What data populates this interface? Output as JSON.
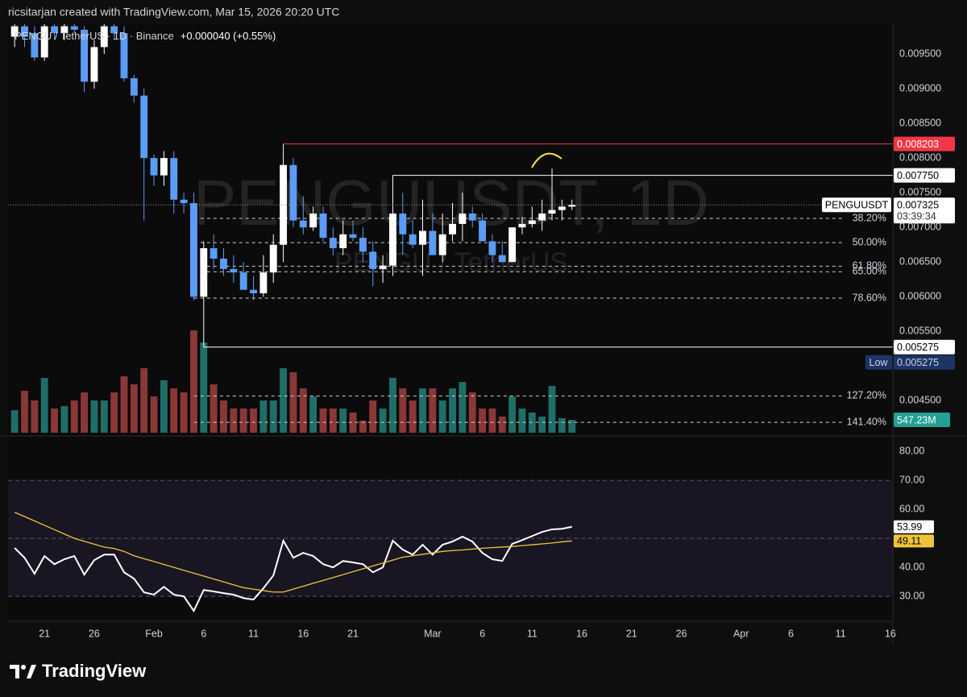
{
  "header": "ricsitarjan created with TradingView.com, Mar 15, 2026 20:20 UTC",
  "footer": "TradingView",
  "chart_data": [
    {
      "type": "candlestick",
      "legend": "PENGU / TetherUS · 1D · Binance",
      "change": "+0.000040 (+0.55%)",
      "watermark": "PENGUUSDT, 1D",
      "watermark_sub": "PENGU / TetherUS",
      "symbol": "PENGUUSDT",
      "countdown": "03:39:34",
      "up_color": "#ffffff",
      "down_color": "#5b9cf6",
      "volume_up_color": "#1f6e68",
      "volume_down_color": "#8a3737",
      "volume_tag_color": "#22a095",
      "x": [
        18,
        19,
        20,
        21,
        22,
        23,
        24,
        25,
        26,
        27,
        28,
        29,
        30,
        31,
        32,
        33,
        34,
        35,
        36,
        37,
        38,
        39,
        40,
        41,
        42,
        43,
        44,
        45,
        46,
        47,
        48,
        49,
        50,
        51,
        52,
        53,
        54,
        55,
        56,
        57,
        58,
        59,
        60,
        61,
        62,
        63,
        64,
        65,
        66,
        67,
        68,
        69,
        70,
        71,
        72,
        73,
        74
      ],
      "open": [
        0.00975,
        0.0099,
        0.0098,
        0.00945,
        0.0099,
        0.0098,
        0.0099,
        0.00985,
        0.0091,
        0.0096,
        0.0099,
        0.0098,
        0.00915,
        0.0089,
        0.008,
        0.00775,
        0.008,
        0.0074,
        0.00735,
        0.006,
        0.0067,
        0.00655,
        0.0064,
        0.00635,
        0.0061,
        0.00605,
        0.00635,
        0.00675,
        0.0079,
        0.0071,
        0.007,
        0.0072,
        0.00685,
        0.0067,
        0.0069,
        0.00685,
        0.00665,
        0.0064,
        0.00645,
        0.0072,
        0.0069,
        0.00675,
        0.00695,
        0.0066,
        0.0069,
        0.00705,
        0.0072,
        0.0071,
        0.0068,
        0.0066,
        0.0065,
        0.007,
        0.00705,
        0.0071,
        0.0072,
        0.00725,
        0.0073
      ],
      "high": [
        0.01,
        0.01,
        0.0099,
        0.01,
        0.01,
        0.01,
        0.01,
        0.0099,
        0.0097,
        0.01,
        0.01,
        0.0099,
        0.0092,
        0.009,
        0.00805,
        0.0081,
        0.0081,
        0.0075,
        0.0075,
        0.0068,
        0.0069,
        0.0067,
        0.0066,
        0.0065,
        0.0063,
        0.0066,
        0.0069,
        0.008203,
        0.008,
        0.00745,
        0.0073,
        0.0073,
        0.007,
        0.0071,
        0.0071,
        0.007,
        0.0068,
        0.0066,
        0.00775,
        0.0075,
        0.0071,
        0.0074,
        0.0072,
        0.0072,
        0.00735,
        0.0075,
        0.0073,
        0.0072,
        0.0069,
        0.0068,
        0.007,
        0.00715,
        0.0073,
        0.0074,
        0.00785,
        0.0074,
        0.0074
      ],
      "low": [
        0.0096,
        0.0096,
        0.0094,
        0.0094,
        0.0097,
        0.0097,
        0.0098,
        0.00895,
        0.009,
        0.0095,
        0.0097,
        0.0091,
        0.0088,
        0.0071,
        0.0076,
        0.0076,
        0.0072,
        0.0072,
        0.00595,
        0.005275,
        0.0064,
        0.0063,
        0.0062,
        0.0061,
        0.00595,
        0.006,
        0.0062,
        0.0065,
        0.007,
        0.0069,
        0.00695,
        0.0068,
        0.0066,
        0.0066,
        0.0068,
        0.0065,
        0.00615,
        0.0062,
        0.0063,
        0.0066,
        0.0067,
        0.0063,
        0.0066,
        0.0065,
        0.0068,
        0.0068,
        0.007,
        0.0068,
        0.0065,
        0.0065,
        0.0065,
        0.0069,
        0.007,
        0.00695,
        0.0071,
        0.0071,
        0.00725
      ],
      "close": [
        0.0099,
        0.00975,
        0.00945,
        0.0099,
        0.0098,
        0.0099,
        0.00985,
        0.0091,
        0.0096,
        0.0099,
        0.0098,
        0.00915,
        0.0089,
        0.008,
        0.00775,
        0.008,
        0.0074,
        0.00735,
        0.006,
        0.0067,
        0.00655,
        0.0064,
        0.00635,
        0.0061,
        0.00605,
        0.00635,
        0.00675,
        0.0079,
        0.0071,
        0.007,
        0.0072,
        0.00685,
        0.0067,
        0.0069,
        0.00685,
        0.00665,
        0.0064,
        0.00645,
        0.0072,
        0.0069,
        0.00675,
        0.00695,
        0.0066,
        0.0069,
        0.00705,
        0.0072,
        0.0071,
        0.0068,
        0.0066,
        0.0065,
        0.007,
        0.00705,
        0.0071,
        0.0072,
        0.00725,
        0.0073,
        0.007325
      ],
      "volume": [
        952,
        1778,
        1368,
        2326,
        1026,
        1129,
        1368,
        1710,
        1368,
        1368,
        1710,
        2394,
        2052,
        2736,
        1539,
        2223,
        1881,
        1710,
        4343,
        3830,
        2052,
        1368,
        1026,
        1026,
        1026,
        1368,
        1368,
        2736,
        2565,
        1881,
        1539,
        1026,
        1026,
        1026,
        855,
        513,
        1368,
        1026,
        2326,
        1881,
        1368,
        1881,
        1881,
        1368,
        1881,
        2155,
        1710,
        1026,
        1026,
        684,
        1539,
        1026,
        855,
        684,
        1984,
        616,
        547.23
      ],
      "volume_label": "547.23M",
      "xlim": [
        17.34,
        106.25
      ],
      "xticks": [
        21,
        26,
        {
          "value": 32,
          "label": "Feb"
        },
        {
          "value": 37,
          "label": "6"
        },
        {
          "value": 42,
          "label": "11"
        },
        {
          "value": 47,
          "label": "16"
        },
        {
          "value": 52,
          "label": "21"
        },
        {
          "value": 60,
          "label": "Mar"
        },
        {
          "value": 65,
          "label": "6"
        },
        {
          "value": 70,
          "label": "11"
        },
        {
          "value": 75,
          "label": "16"
        },
        {
          "value": 80,
          "label": "21"
        },
        {
          "value": 85,
          "label": "26"
        },
        {
          "value": 91,
          "label": "Apr"
        },
        {
          "value": 96,
          "label": "6"
        },
        {
          "value": 101,
          "label": "11"
        },
        {
          "value": 106,
          "label": "16"
        }
      ],
      "ylim": [
        0.00404,
        0.00993
      ],
      "yticks": [
        {
          "value": 0.0045,
          "label": "0.004500"
        },
        {
          "value": 0.0055,
          "label": "0.005500"
        },
        {
          "value": 0.006,
          "label": "0.006000"
        },
        {
          "value": 0.0065,
          "label": "0.006500"
        },
        {
          "value": 0.007,
          "label": "0.007000"
        },
        {
          "value": 0.0075,
          "label": "0.007500"
        },
        {
          "value": 0.008,
          "label": "0.008000"
        },
        {
          "value": 0.0085,
          "label": "0.008500"
        },
        {
          "value": 0.009,
          "label": "0.009000"
        },
        {
          "value": 0.0095,
          "label": "0.009500"
        }
      ],
      "levels": [
        {
          "value": 0.008203,
          "label": "0.008203",
          "color": "#f23645",
          "text_color": "#ffffff"
        },
        {
          "value": 0.00775,
          "label": "0.007750",
          "color": "#ffffff",
          "text_color": "#000000"
        },
        {
          "value": 0.005275,
          "label": "0.005275",
          "color": "#ffffff",
          "text_color": "#000000"
        }
      ],
      "low_tag": {
        "name": "Low",
        "value": 0.005275,
        "label": "0.005275",
        "color": "#1c3466",
        "text_color": "#d1d4dc"
      },
      "fib": [
        {
          "value": 0.00713,
          "label": "38.20%"
        },
        {
          "value": 0.00678,
          "label": "50.00%"
        },
        {
          "value": 0.00644,
          "label": "61.80%"
        },
        {
          "value": 0.00636,
          "label": "65.00%"
        },
        {
          "value": 0.00598,
          "label": "78.60%"
        },
        {
          "value": 0.00457,
          "label": "127.20%"
        },
        {
          "value": 0.00419,
          "label": "141.40%"
        }
      ]
    },
    {
      "type": "line",
      "series": [
        {
          "color": "#ffffff",
          "values": [
            46.7,
            43.3,
            37.8,
            43.9,
            41.1,
            42.8,
            43.9,
            37.5,
            42.5,
            44.4,
            44.4,
            38.3,
            36.1,
            31.4,
            30.6,
            33.3,
            30.6,
            30,
            25,
            32.2,
            31.7,
            31.1,
            30.6,
            29.4,
            28.9,
            32.8,
            37.2,
            49.2,
            43.3,
            45,
            43.9,
            41.1,
            40,
            42.2,
            41.7,
            41.1,
            38.3,
            40,
            49.2,
            46.1,
            44.4,
            47.8,
            44.4,
            47.8,
            48.9,
            50.6,
            48.9,
            45,
            42.8,
            42.2,
            48.1,
            49.4,
            50.8,
            52.2,
            53.1,
            53.3,
            53.99
          ]
        },
        {
          "color": "#f0c43a",
          "values": [
            59,
            57.5,
            56,
            54.5,
            53,
            51.5,
            50,
            49,
            48,
            47,
            46.5,
            45.5,
            44,
            43,
            42,
            41,
            40,
            39,
            38,
            37,
            36,
            35,
            34,
            33,
            32.5,
            32,
            31.5,
            31.5,
            32.5,
            33.5,
            34.5,
            35.5,
            36.5,
            37.5,
            38.5,
            39.5,
            40.5,
            41.5,
            42.5,
            43.5,
            44,
            44.5,
            45,
            45.5,
            45.8,
            46,
            46.3,
            46.6,
            46.8,
            47,
            47.2,
            47.5,
            47.8,
            48.1,
            48.4,
            48.8,
            49.11
          ]
        }
      ],
      "ylim": [
        21.7,
        84.2
      ],
      "yticks": [
        {
          "value": 30,
          "label": "30.00"
        },
        {
          "value": 40,
          "label": "40.00"
        },
        {
          "value": 60,
          "label": "60.00"
        },
        {
          "value": 70,
          "label": "70.00"
        },
        {
          "value": 80,
          "label": "80.00"
        }
      ],
      "band": [
        30,
        70
      ],
      "band_color": "rgba(120,90,200,0.13)",
      "levels": [
        70,
        50,
        30
      ]
    }
  ]
}
